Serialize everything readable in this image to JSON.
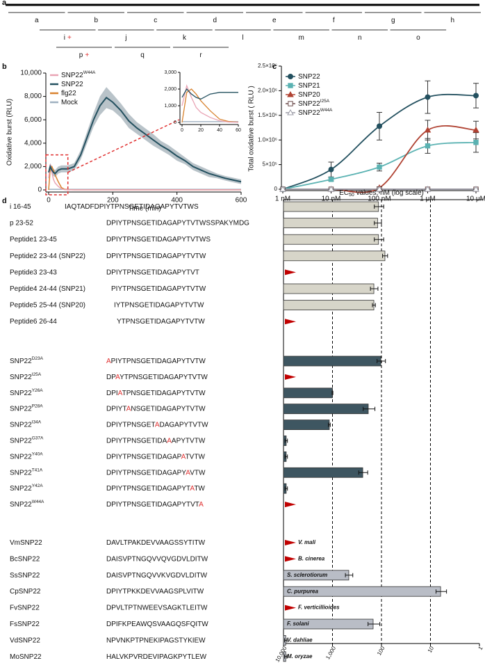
{
  "panel_labels": [
    "a",
    "b",
    "c",
    "d"
  ],
  "panel_a": {
    "rows": [
      [
        "a",
        "b",
        "c",
        "d",
        "e",
        "f",
        "g",
        "h"
      ],
      [
        "i",
        "j",
        "k",
        "l",
        "m",
        "n",
        "o"
      ],
      [
        "p",
        "q",
        "r"
      ]
    ],
    "plus": "+"
  },
  "chart_data": [
    {
      "type": "line",
      "y_label": "Oxidative burst (RLU)",
      "x_label": "Time (min)",
      "x": [
        0,
        5,
        10,
        15,
        20,
        30,
        40,
        50,
        60,
        80,
        100,
        120,
        140,
        160,
        180,
        200,
        225,
        250,
        275,
        300,
        325,
        350,
        375,
        400,
        425,
        450,
        475,
        500,
        525,
        550,
        575,
        600
      ],
      "xlim": [
        0,
        600
      ],
      "xticks": [
        0,
        200,
        400,
        600
      ],
      "ylim": [
        0,
        10000
      ],
      "yticks": [
        0,
        {
          "value": 2000,
          "label": "2,000"
        },
        {
          "value": 4000,
          "label": "4,000"
        },
        {
          "value": 6000,
          "label": "6,000"
        },
        {
          "value": 8000,
          "label": "8,000"
        },
        {
          "value": 10000,
          "label": "10,000"
        }
      ],
      "series": [
        {
          "name": "SNP22",
          "sup": "W44A",
          "color": "#e9a3b4",
          "values": [
            1000,
            2200,
            1500,
            900,
            600,
            300,
            100,
            20,
            10,
            10,
            10,
            10,
            10,
            10,
            10,
            10,
            10,
            10,
            10,
            10,
            10,
            10,
            10,
            10,
            10,
            10,
            10,
            10,
            10,
            10,
            10,
            10
          ]
        },
        {
          "name": "SNP22",
          "color": "#23505f",
          "values": [
            1500,
            2000,
            1700,
            1500,
            1400,
            1700,
            1800,
            1800,
            1800,
            2000,
            3000,
            4500,
            6000,
            7200,
            7900,
            7500,
            6800,
            5900,
            5300,
            4800,
            4300,
            3800,
            3400,
            2900,
            2500,
            2000,
            1700,
            1400,
            1200,
            1000,
            850,
            700
          ],
          "errors": [
            300,
            300,
            300,
            300,
            300,
            300,
            300,
            300,
            300,
            300,
            400,
            500,
            600,
            800,
            900,
            700,
            600,
            600,
            500,
            500,
            500,
            400,
            400,
            400,
            300,
            300,
            300,
            300,
            200,
            200,
            200,
            200
          ],
          "band_color": "#b9c3c9"
        },
        {
          "name": "flg22",
          "color": "#d8822e",
          "values": [
            0,
            1800,
            2000,
            1700,
            1300,
            700,
            200,
            50,
            20,
            10,
            10,
            10,
            10,
            10,
            10,
            10,
            10,
            10,
            10,
            10,
            10,
            10,
            10,
            10,
            10,
            10,
            10,
            10,
            10,
            10,
            10,
            10
          ]
        },
        {
          "name": "Mock",
          "color": "#9fb0c0",
          "values": [
            50,
            50,
            50,
            50,
            50,
            50,
            50,
            50,
            50,
            50,
            50,
            50,
            50,
            50,
            50,
            50,
            50,
            50,
            50,
            50,
            50,
            50,
            50,
            50,
            50,
            50,
            50,
            50,
            50,
            50,
            50,
            50
          ]
        }
      ],
      "inset": {
        "xlim": [
          0,
          60
        ],
        "xticks": [
          0,
          20,
          40,
          60
        ],
        "ylim": [
          0,
          3000
        ],
        "yticks": [
          0,
          {
            "value": 1000,
            "label": "1,000"
          },
          {
            "value": 2000,
            "label": "2,000"
          },
          {
            "value": 3000,
            "label": "3,000"
          }
        ],
        "color": "#e03030"
      }
    },
    {
      "type": "line",
      "xscale": "log",
      "y_label": "Total oxidative burst ( RLU )",
      "x": [
        1,
        10,
        100,
        1000,
        10000
      ],
      "xlim": [
        1,
        10000
      ],
      "xticks": [
        {
          "value": 1,
          "label": "1 nM"
        },
        {
          "value": 10,
          "label": "10 nM"
        },
        {
          "value": 100,
          "label": "100 nM"
        },
        {
          "value": 1000,
          "label": "1 μM"
        },
        {
          "value": 10000,
          "label": "10 μM"
        }
      ],
      "ylim": [
        0,
        2500000
      ],
      "yticks": [
        0,
        {
          "value": 500000,
          "label": "5×10⁵"
        },
        {
          "value": 1000000,
          "label": "1.0×10⁶"
        },
        {
          "value": 1500000,
          "label": "1.5×10⁶"
        },
        {
          "value": 2000000,
          "label": "2.0×10⁶"
        },
        {
          "value": 2500000,
          "label": "2.5×10⁶"
        }
      ],
      "series": [
        {
          "name": "SNP22",
          "color": "#23505f",
          "marker": "circle",
          "values": [
            0,
            400000,
            1280000,
            1870000,
            1900000
          ],
          "errors": [
            0,
            150000,
            280000,
            330000,
            250000
          ]
        },
        {
          "name": "SNP21",
          "color": "#5ab2b2",
          "marker": "square",
          "values": [
            0,
            200000,
            450000,
            880000,
            950000
          ],
          "errors": [
            0,
            30000,
            80000,
            150000,
            200000
          ]
        },
        {
          "name": "SNP20",
          "color": "#b04232",
          "marker": "triangle",
          "values": [
            0,
            0,
            30000,
            1200000,
            1200000
          ],
          "errors": [
            0,
            0,
            20000,
            200000,
            180000
          ]
        },
        {
          "name": "SNP22",
          "sup": "I25A",
          "color": "#6a4a4a",
          "marker": "open-square",
          "values": [
            0,
            0,
            0,
            0,
            0
          ],
          "errors": [
            0,
            0,
            0,
            0,
            0
          ]
        },
        {
          "name": "SNP22",
          "sup": "W44A",
          "color": "#9a9aa6",
          "marker": "open-triangle",
          "values": [
            0,
            0,
            0,
            0,
            0
          ],
          "errors": [
            0,
            0,
            0,
            0,
            0
          ]
        }
      ]
    },
    {
      "type": "bar",
      "xscale": "log",
      "x_label": {
        "main": "EC",
        "sub": "50",
        "rest": " values, nM (log scale)"
      },
      "xlim": [
        10000,
        1
      ],
      "xticks": [
        {
          "value": 10000,
          "label": "10,000"
        },
        {
          "value": 1000,
          "label": "1,000"
        },
        100,
        10,
        1
      ],
      "grid": true,
      "inactive_color": "#c00000",
      "groups": [
        {
          "color": "#d7d5c9",
          "categories": [
            {
              "name": "i 16-45",
              "sequence": [
                {
                  "text": "IAQTADFDPIYTPNSGETIDAGAPYTVTWS"
                }
              ]
            },
            {
              "name": "p 23-52",
              "sequence": [
                {
                  "text": "DPIYTPNSGETIDAGAPYTVTWSSPAKYMDG"
                }
              ]
            },
            {
              "name": "Peptide1 23-45",
              "sequence": [
                {
                  "text": "DPIYTPNSGETIDAGAPYTVTWS"
                }
              ]
            },
            {
              "name": "Peptide2 23-44 (SNP22)",
              "sequence": [
                {
                  "text": "DPIYTPNSGETIDAGAPYTVTW"
                }
              ]
            },
            {
              "name": "Peptide3 23-43",
              "sequence": [
                {
                  "text": "DPIYTPNSGETIDAGAPYTVT"
                }
              ]
            },
            {
              "name": "Peptide4 24-44 (SNP21)",
              "sequence": [
                {
                  "text": "PIYTPNSGETIDAGAPYTVTW"
                }
              ]
            },
            {
              "name": "Peptide5 25-44 (SNP20)",
              "sequence": [
                {
                  "text": "IYTPNSGETIDAGAPYTVTW"
                }
              ]
            },
            {
              "name": "Peptide6 26-44",
              "sequence": [
                {
                  "text": "YTPNSGETIDAGAPYTVTW"
                }
              ]
            }
          ],
          "values": [
            115,
            120,
            115,
            85,
            null,
            143,
            143,
            null
          ],
          "errors": [
            25,
            20,
            25,
            10,
            null,
            25,
            10,
            null
          ]
        },
        {
          "color": "#3e5661",
          "categories": [
            {
              "name": "SNP22",
              "sup": "D23A",
              "sequence": [
                {
                  "text": "A",
                  "color": "#e03030"
                },
                {
                  "text": "PIYTPNSGETIDAGAPYTVTW"
                }
              ]
            },
            {
              "name": "SNP22",
              "sup": "I25A",
              "sequence": [
                {
                  "text": "DP"
                },
                {
                  "text": "A",
                  "color": "#e03030"
                },
                {
                  "text": "YTPNSGETIDAGAPYTVTW"
                }
              ]
            },
            {
              "name": "SNP22",
              "sup": "Y26A",
              "sequence": [
                {
                  "text": "DPI"
                },
                {
                  "text": "A",
                  "color": "#e03030"
                },
                {
                  "text": "TPNSGETIDAGAPYTVTW"
                }
              ]
            },
            {
              "name": "SNP22",
              "sup": "P28A",
              "sequence": [
                {
                  "text": "DPIYT"
                },
                {
                  "text": "A",
                  "color": "#e03030"
                },
                {
                  "text": "NSGETIDAGAPYTVTW"
                }
              ]
            },
            {
              "name": "SNP22",
              "sup": "I34A",
              "sequence": [
                {
                  "text": "DPIYTPNSGET"
                },
                {
                  "text": "A",
                  "color": "#e03030"
                },
                {
                  "text": "DAGAPYTVTW"
                }
              ]
            },
            {
              "name": "SNP22",
              "sup": "G37A",
              "sequence": [
                {
                  "text": "DPIYTPNSGETIDA"
                },
                {
                  "text": "A",
                  "color": "#e03030"
                },
                {
                  "text": "APYTVTW"
                }
              ]
            },
            {
              "name": "SNP22",
              "sup": "Y40A",
              "sequence": [
                {
                  "text": "DPIYTPNSGETIDAGAP"
                },
                {
                  "text": "A",
                  "color": "#e03030"
                },
                {
                  "text": "TVTW"
                }
              ]
            },
            {
              "name": "SNP22",
              "sup": "T41A",
              "sequence": [
                {
                  "text": "DPIYTPNSGETIDAGAPY"
                },
                {
                  "text": "A",
                  "color": "#e03030"
                },
                {
                  "text": "VTW"
                }
              ]
            },
            {
              "name": "SNP22",
              "sup": "Y42A",
              "sequence": [
                {
                  "text": "DPIYTPNSGETIDAGAPYT"
                },
                {
                  "text": "A",
                  "color": "#e03030"
                },
                {
                  "text": "TW"
                }
              ]
            },
            {
              "name": "SNP22",
              "sup": "W44A",
              "sequence": [
                {
                  "text": "DPIYTPNSGETIDAGAPYTVT"
                },
                {
                  "text": "A",
                  "color": "#e03030"
                }
              ]
            }
          ],
          "values": [
            103,
            null,
            1000,
            186,
            1160,
            8800,
            8800,
            241,
            8800,
            null
          ],
          "errors": [
            20,
            null,
            20,
            50,
            50,
            500,
            500,
            50,
            500,
            null
          ]
        },
        {
          "color": "#b9bdc6",
          "categories": [
            {
              "name": "VmSNP22",
              "sequence": [
                {
                  "text": "DAVLTPAKDEVVAAGSSYTITW"
                }
              ]
            },
            {
              "name": "BcSNP22",
              "sequence": [
                {
                  "text": "DAISVPTNGQVVQVGDVLDITW"
                }
              ]
            },
            {
              "name": "SsSNP22",
              "sequence": [
                {
                  "text": "DAISVPTNGQVVKVGDVLDITW"
                }
              ]
            },
            {
              "name": "CpSNP22",
              "sequence": [
                {
                  "text": "DPIYTPKKDEVVAAGSPLVITW"
                }
              ]
            },
            {
              "name": "FvSNP22",
              "sequence": [
                {
                  "text": "DPVLTPTNWEEVSAGKTLEITW"
                }
              ]
            },
            {
              "name": "FsSNP22",
              "sequence": [
                {
                  "text": "DPIFKPEAWQSVAAGQSFQITW"
                }
              ]
            },
            {
              "name": "VdSNP22",
              "sequence": [
                {
                  "text": "NPVNKPTPNEKIPAGSTYKIEW"
                }
              ]
            },
            {
              "name": "MoSNP22",
              "sequence": [
                {
                  "text": "HALVKPVRDEVIPAGKPYTLEW"
                }
              ]
            }
          ],
          "values": [
            null,
            null,
            465,
            6.2,
            null,
            148,
            9000,
            9000
          ],
          "errors": [
            null,
            null,
            80,
            1.5,
            null,
            40,
            500,
            500
          ],
          "annotations": [
            "V. mali",
            "B. cinerea",
            "S. sclerotiorum",
            "C. purpurea",
            "F. verticillioides",
            "F. solani",
            "V. dahliae",
            "M. oryzae"
          ]
        }
      ]
    }
  ]
}
